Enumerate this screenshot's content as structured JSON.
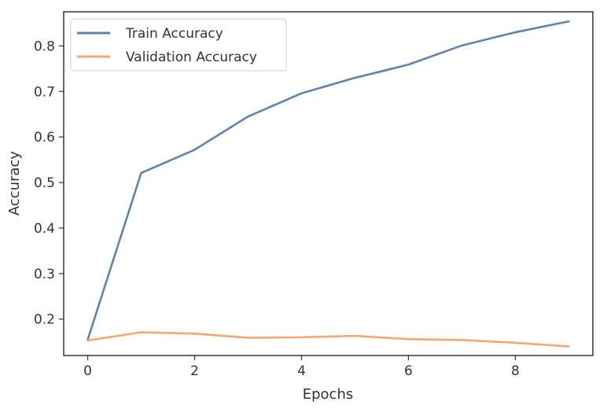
{
  "chart_data": {
    "type": "line",
    "title": "",
    "xlabel": "Epochs",
    "ylabel": "Accuracy",
    "x": [
      0,
      1,
      2,
      3,
      4,
      5,
      6,
      7,
      8,
      9
    ],
    "xlim": [
      -0.45,
      9.45
    ],
    "ylim": [
      0.12,
      0.875
    ],
    "xticks": [
      0,
      2,
      4,
      6,
      8
    ],
    "yticks": [
      0.2,
      0.3,
      0.4,
      0.5,
      0.6,
      0.7,
      0.8
    ],
    "xtick_labels": [
      "0",
      "2",
      "4",
      "6",
      "8"
    ],
    "ytick_labels": [
      "0.2",
      "0.3",
      "0.4",
      "0.5",
      "0.6",
      "0.7",
      "0.8"
    ],
    "grid": false,
    "legend_position": "top-left",
    "series": [
      {
        "name": "Train Accuracy",
        "color": "#5b84b1",
        "values": [
          0.155,
          0.521,
          0.572,
          0.645,
          0.696,
          0.73,
          0.759,
          0.801,
          0.83,
          0.854
        ]
      },
      {
        "name": "Validation Accuracy",
        "color": "#f5a673",
        "values": [
          0.153,
          0.171,
          0.168,
          0.159,
          0.16,
          0.163,
          0.156,
          0.154,
          0.148,
          0.14
        ]
      }
    ]
  }
}
